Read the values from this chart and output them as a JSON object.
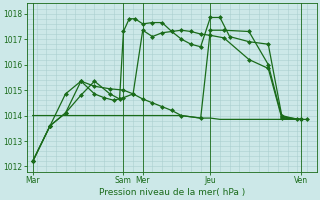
{
  "background_color": "#cce8e8",
  "grid_color": "#aacfcf",
  "line_color": "#1a6b1a",
  "xlabel": "Pression niveau de la mer( hPa )",
  "ylim": [
    1011.8,
    1018.4
  ],
  "yticks": [
    1012,
    1013,
    1014,
    1015,
    1016,
    1017,
    1018
  ],
  "xlim": [
    0,
    15
  ],
  "xtick_labels": [
    "Mar",
    "Sam",
    "Mer",
    "Jeu",
    "Ven"
  ],
  "xtick_positions": [
    0.3,
    5.0,
    6.0,
    9.5,
    14.2
  ],
  "vlines": [
    0.3,
    5.0,
    6.0,
    9.5,
    14.2
  ],
  "series1_x": [
    0.3,
    1.2,
    2.0,
    2.8,
    3.5,
    4.3,
    4.8,
    5.0,
    5.3,
    5.6,
    6.0,
    6.5,
    7.0,
    7.5,
    8.0,
    8.5,
    9.0,
    9.5,
    10.0,
    10.5,
    11.5,
    12.5,
    13.2,
    14.0,
    14.5
  ],
  "series1_y": [
    1012.2,
    1013.6,
    1014.1,
    1014.8,
    1015.35,
    1014.85,
    1014.65,
    1017.3,
    1017.8,
    1017.8,
    1017.6,
    1017.65,
    1017.65,
    1017.3,
    1017.0,
    1016.8,
    1016.7,
    1017.85,
    1017.85,
    1017.1,
    1016.9,
    1016.8,
    1014.0,
    1013.85,
    1013.85
  ],
  "series2_x": [
    0.3,
    1.2,
    2.0,
    2.8,
    3.5,
    4.3,
    5.0,
    5.5,
    6.0,
    6.5,
    7.0,
    7.5,
    8.0,
    9.0,
    9.5,
    10.2,
    11.5,
    12.5,
    13.2,
    14.2
  ],
  "series2_y": [
    1012.2,
    1013.6,
    1014.1,
    1015.35,
    1015.15,
    1015.05,
    1015.0,
    1014.85,
    1014.65,
    1014.5,
    1014.35,
    1014.2,
    1014.0,
    1013.9,
    1017.35,
    1017.35,
    1017.3,
    1016.0,
    1013.95,
    1013.85
  ],
  "series3_x": [
    0.3,
    1.2,
    2.0,
    2.8,
    3.5,
    4.0,
    4.5,
    5.0,
    5.5,
    6.0,
    6.5,
    7.0,
    7.5,
    8.0,
    8.5,
    9.0,
    9.5,
    10.2,
    11.5,
    12.5,
    13.2,
    14.2
  ],
  "series3_y": [
    1012.2,
    1013.6,
    1014.85,
    1015.35,
    1014.85,
    1014.7,
    1014.6,
    1014.7,
    1014.85,
    1017.35,
    1017.1,
    1017.25,
    1017.3,
    1017.35,
    1017.3,
    1017.2,
    1017.15,
    1017.05,
    1016.2,
    1015.85,
    1013.9,
    1013.85
  ],
  "series4_x": [
    0.3,
    2.0,
    5.0,
    6.0,
    7.0,
    8.0,
    9.0,
    9.5,
    10.0,
    11.0,
    12.0,
    13.0,
    14.2
  ],
  "series4_y": [
    1014.0,
    1014.0,
    1014.0,
    1014.0,
    1014.0,
    1014.0,
    1013.9,
    1013.9,
    1013.85,
    1013.85,
    1013.85,
    1013.85,
    1013.85
  ]
}
